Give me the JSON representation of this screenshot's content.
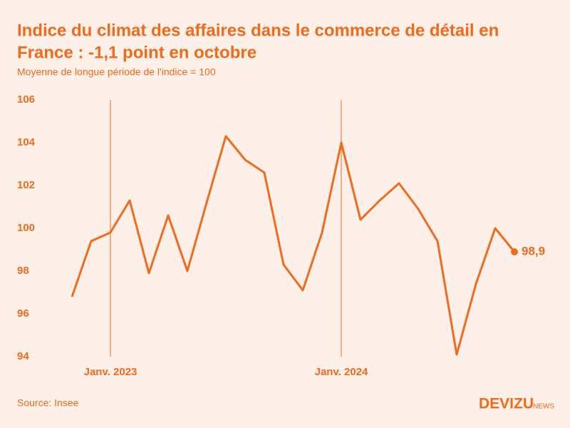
{
  "chart_data": {
    "type": "line",
    "title": [
      "Indice du climat des affaires dans le commerce de détail en",
      "France : -1,1 point en octobre"
    ],
    "subtitle": "Moyenne de longue période de l'indice = 100",
    "source": "Source: Insee",
    "logo": [
      "DEVIZU",
      "NEWS"
    ],
    "categories": [
      null,
      null,
      "Janv. 2023",
      null,
      null,
      null,
      null,
      null,
      null,
      null,
      null,
      null,
      null,
      null,
      "Janv. 2024",
      null,
      null,
      null,
      null,
      null,
      null,
      null,
      null,
      null
    ],
    "series": [
      {
        "name": "Indice du climat des affaires",
        "color": "#f26b1d",
        "values": [
          96.8,
          99.4,
          99.8,
          101.3,
          97.9,
          100.6,
          98.0,
          101.2,
          104.3,
          103.2,
          102.6,
          98.3,
          97.1,
          99.8,
          104.0,
          100.4,
          101.3,
          102.1,
          100.9,
          99.4,
          94.1,
          97.4,
          100.0,
          98.9
        ],
        "value_labels": [
          null,
          null,
          null,
          null,
          null,
          null,
          null,
          null,
          null,
          null,
          null,
          null,
          null,
          null,
          null,
          null,
          null,
          null,
          null,
          null,
          null,
          null,
          null,
          "98,9"
        ]
      }
    ],
    "ylim": [
      94,
      106
    ],
    "yticks": [
      94,
      96,
      98,
      100,
      102,
      104,
      106
    ],
    "grid": false
  }
}
